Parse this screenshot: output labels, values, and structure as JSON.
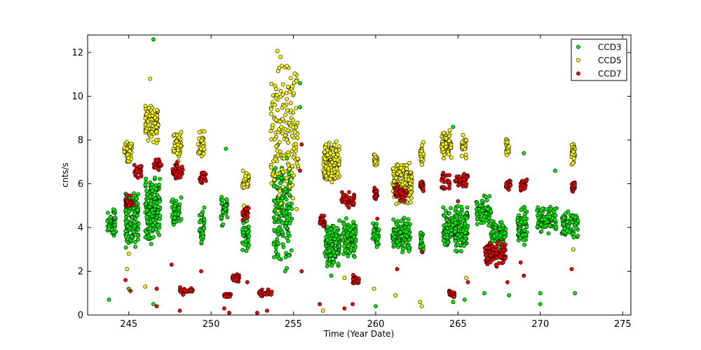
{
  "chart_data": {
    "type": "scatter",
    "title": "",
    "xlabel": "Time (Year Date)",
    "ylabel": "cnts/s",
    "xlim": [
      242.5,
      275.5
    ],
    "ylim": [
      0,
      12.8
    ],
    "xticks": [
      245,
      250,
      255,
      260,
      265,
      270,
      275
    ],
    "yticks": [
      0,
      2,
      4,
      6,
      8,
      10,
      12
    ],
    "grid": false,
    "legend_position": "top-right",
    "series": [
      {
        "name": "CCD3",
        "color": "#00ee00",
        "clusters": [
          {
            "x": [
              243.7,
              244.2
            ],
            "y": [
              3.5,
              5.0
            ]
          },
          {
            "x": [
              244.8,
              245.6
            ],
            "y": [
              3.0,
              5.8
            ]
          },
          {
            "x": [
              246.0,
              246.9
            ],
            "y": [
              3.2,
              6.5
            ]
          },
          {
            "x": [
              247.6,
              248.2
            ],
            "y": [
              4.0,
              5.5
            ]
          },
          {
            "x": [
              249.3,
              249.6
            ],
            "y": [
              3.0,
              5.0
            ]
          },
          {
            "x": [
              250.6,
              251.0
            ],
            "y": [
              4.0,
              5.5
            ]
          },
          {
            "x": [
              251.9,
              252.3
            ],
            "y": [
              2.8,
              4.5
            ]
          },
          {
            "x": [
              253.8,
              254.9
            ],
            "y": [
              2.0,
              7.5
            ]
          },
          {
            "x": [
              256.9,
              257.8
            ],
            "y": [
              2.0,
              4.5
            ]
          },
          {
            "x": [
              258.0,
              258.8
            ],
            "y": [
              2.5,
              4.5
            ]
          },
          {
            "x": [
              259.8,
              260.2
            ],
            "y": [
              3.0,
              4.5
            ]
          },
          {
            "x": [
              261.0,
              262.1
            ],
            "y": [
              2.8,
              4.5
            ]
          },
          {
            "x": [
              262.7,
              262.9
            ],
            "y": [
              2.8,
              4.0
            ]
          },
          {
            "x": [
              264.1,
              264.7
            ],
            "y": [
              3.0,
              5.0
            ]
          },
          {
            "x": [
              264.8,
              265.6
            ],
            "y": [
              2.8,
              5.2
            ]
          },
          {
            "x": [
              266.1,
              267.0
            ],
            "y": [
              4.0,
              5.5
            ]
          },
          {
            "x": [
              267.0,
              267.9
            ],
            "y": [
              3.0,
              4.5
            ]
          },
          {
            "x": [
              268.6,
              269.2
            ],
            "y": [
              3.0,
              5.0
            ]
          },
          {
            "x": [
              269.8,
              271.0
            ],
            "y": [
              3.7,
              5.0
            ]
          },
          {
            "x": [
              271.3,
              272.3
            ],
            "y": [
              3.5,
              4.8
            ]
          }
        ],
        "outliers": [
          [
            243.8,
            0.7
          ],
          [
            246.5,
            12.6
          ],
          [
            245.0,
            1.2
          ],
          [
            246.5,
            0.5
          ],
          [
            247.9,
            7.5
          ],
          [
            250.9,
            7.6
          ],
          [
            254.5,
            2.0
          ],
          [
            255.4,
            10.6
          ],
          [
            255.4,
            9.5
          ],
          [
            257.3,
            1.8
          ],
          [
            260.0,
            0.4
          ],
          [
            264.7,
            8.6
          ],
          [
            264.7,
            0.6
          ],
          [
            265.4,
            0.7
          ],
          [
            266.6,
            1.0
          ],
          [
            268.1,
            0.9
          ],
          [
            269.0,
            7.4
          ],
          [
            270.0,
            1.0
          ],
          [
            270.0,
            0.5
          ],
          [
            270.9,
            6.6
          ],
          [
            272.1,
            1.0
          ]
        ]
      },
      {
        "name": "CCD5",
        "color": "#ffff00",
        "clusters": [
          {
            "x": [
              244.7,
              245.2
            ],
            "y": [
              6.8,
              8.0
            ]
          },
          {
            "x": [
              246.0,
              246.8
            ],
            "y": [
              7.8,
              9.8
            ]
          },
          {
            "x": [
              247.7,
              248.2
            ],
            "y": [
              7.0,
              8.5
            ]
          },
          {
            "x": [
              249.2,
              249.6
            ],
            "y": [
              7.2,
              8.5
            ]
          },
          {
            "x": [
              251.9,
              252.3
            ],
            "y": [
              5.5,
              6.8
            ]
          },
          {
            "x": [
              253.6,
              255.3
            ],
            "y": [
              4.5,
              12.3
            ]
          },
          {
            "x": [
              256.8,
              257.8
            ],
            "y": [
              5.8,
              8.0
            ]
          },
          {
            "x": [
              259.9,
              260.1
            ],
            "y": [
              6.8,
              7.4
            ]
          },
          {
            "x": [
              261.0,
              262.2
            ],
            "y": [
              5.0,
              7.2
            ]
          },
          {
            "x": [
              262.7,
              262.9
            ],
            "y": [
              6.8,
              8.0
            ]
          },
          {
            "x": [
              264.0,
              264.6
            ],
            "y": [
              7.0,
              8.5
            ]
          },
          {
            "x": [
              265.2,
              265.5
            ],
            "y": [
              7.0,
              8.3
            ]
          },
          {
            "x": [
              267.9,
              268.1
            ],
            "y": [
              7.2,
              8.2
            ]
          },
          {
            "x": [
              271.9,
              272.1
            ],
            "y": [
              6.8,
              8.0
            ]
          }
        ],
        "outliers": [
          [
            244.9,
            2.1
          ],
          [
            245.0,
            2.8
          ],
          [
            246.3,
            10.8
          ],
          [
            246.0,
            1.3
          ],
          [
            252.0,
            5.0
          ],
          [
            256.8,
            0.2
          ],
          [
            258.1,
            1.7
          ],
          [
            259.9,
            1.2
          ],
          [
            261.2,
            0.9
          ],
          [
            262.7,
            0.6
          ],
          [
            262.8,
            0.4
          ],
          [
            265.5,
            1.7
          ],
          [
            272.0,
            3.0
          ]
        ]
      },
      {
        "name": "CCD7",
        "color": "#ee0000",
        "clusters": [
          {
            "x": [
              244.8,
              245.3
            ],
            "y": [
              4.8,
              5.5
            ]
          },
          {
            "x": [
              245.3,
              245.8
            ],
            "y": [
              6.2,
              7.0
            ]
          },
          {
            "x": [
              246.5,
              247.0
            ],
            "y": [
              6.5,
              7.2
            ]
          },
          {
            "x": [
              247.6,
              248.3
            ],
            "y": [
              6.2,
              7.0
            ]
          },
          {
            "x": [
              248.0,
              248.9
            ],
            "y": [
              0.9,
              1.3
            ]
          },
          {
            "x": [
              249.3,
              249.7
            ],
            "y": [
              6.0,
              6.6
            ]
          },
          {
            "x": [
              250.8,
              251.2
            ],
            "y": [
              0.8,
              1.0
            ]
          },
          {
            "x": [
              251.3,
              251.7
            ],
            "y": [
              1.5,
              1.9
            ]
          },
          {
            "x": [
              251.9,
              252.3
            ],
            "y": [
              4.3,
              5.0
            ]
          },
          {
            "x": [
              252.9,
              253.7
            ],
            "y": [
              0.8,
              1.2
            ]
          },
          {
            "x": [
              256.6,
              256.9
            ],
            "y": [
              4.0,
              4.6
            ]
          },
          {
            "x": [
              257.9,
              258.7
            ],
            "y": [
              4.9,
              5.7
            ]
          },
          {
            "x": [
              258.6,
              259.0
            ],
            "y": [
              1.4,
              1.9
            ]
          },
          {
            "x": [
              259.9,
              260.1
            ],
            "y": [
              5.2,
              5.9
            ]
          },
          {
            "x": [
              261.1,
              261.9
            ],
            "y": [
              5.2,
              6.0
            ]
          },
          {
            "x": [
              262.7,
              262.9
            ],
            "y": [
              5.6,
              6.2
            ]
          },
          {
            "x": [
              264.0,
              264.5
            ],
            "y": [
              5.7,
              6.5
            ]
          },
          {
            "x": [
              264.4,
              264.8
            ],
            "y": [
              0.8,
              1.2
            ]
          },
          {
            "x": [
              264.8,
              265.6
            ],
            "y": [
              5.8,
              6.5
            ]
          },
          {
            "x": [
              266.6,
              267.9
            ],
            "y": [
              2.2,
              3.4
            ]
          },
          {
            "x": [
              267.9,
              268.2
            ],
            "y": [
              5.7,
              6.3
            ]
          },
          {
            "x": [
              268.8,
              269.2
            ],
            "y": [
              5.6,
              6.3
            ]
          },
          {
            "x": [
              271.9,
              272.1
            ],
            "y": [
              5.6,
              6.1
            ]
          }
        ],
        "outliers": [
          [
            244.8,
            1.6
          ],
          [
            245.1,
            1.1
          ],
          [
            246.7,
            1.2
          ],
          [
            246.7,
            0.4
          ],
          [
            247.6,
            2.3
          ],
          [
            248.1,
            0.2
          ],
          [
            249.4,
            2.0
          ],
          [
            250.8,
            0.3
          ],
          [
            251.1,
            0.1
          ],
          [
            251.7,
            0.0
          ],
          [
            252.2,
            1.5
          ],
          [
            252.8,
            0.1
          ],
          [
            253.4,
            0.2
          ],
          [
            255.5,
            7.8
          ],
          [
            255.4,
            6.6
          ],
          [
            255.5,
            2.0
          ],
          [
            256.6,
            0.5
          ],
          [
            258.1,
            0.3
          ],
          [
            258.6,
            0.5
          ],
          [
            260.1,
            4.4
          ],
          [
            261.3,
            2.1
          ],
          [
            262.8,
            2.9
          ],
          [
            264.1,
            6.5
          ],
          [
            265.0,
            5.2
          ],
          [
            265.6,
            1.5
          ],
          [
            268.0,
            1.5
          ],
          [
            268.8,
            2.4
          ],
          [
            269.0,
            1.8
          ],
          [
            271.9,
            2.1
          ]
        ]
      }
    ]
  }
}
